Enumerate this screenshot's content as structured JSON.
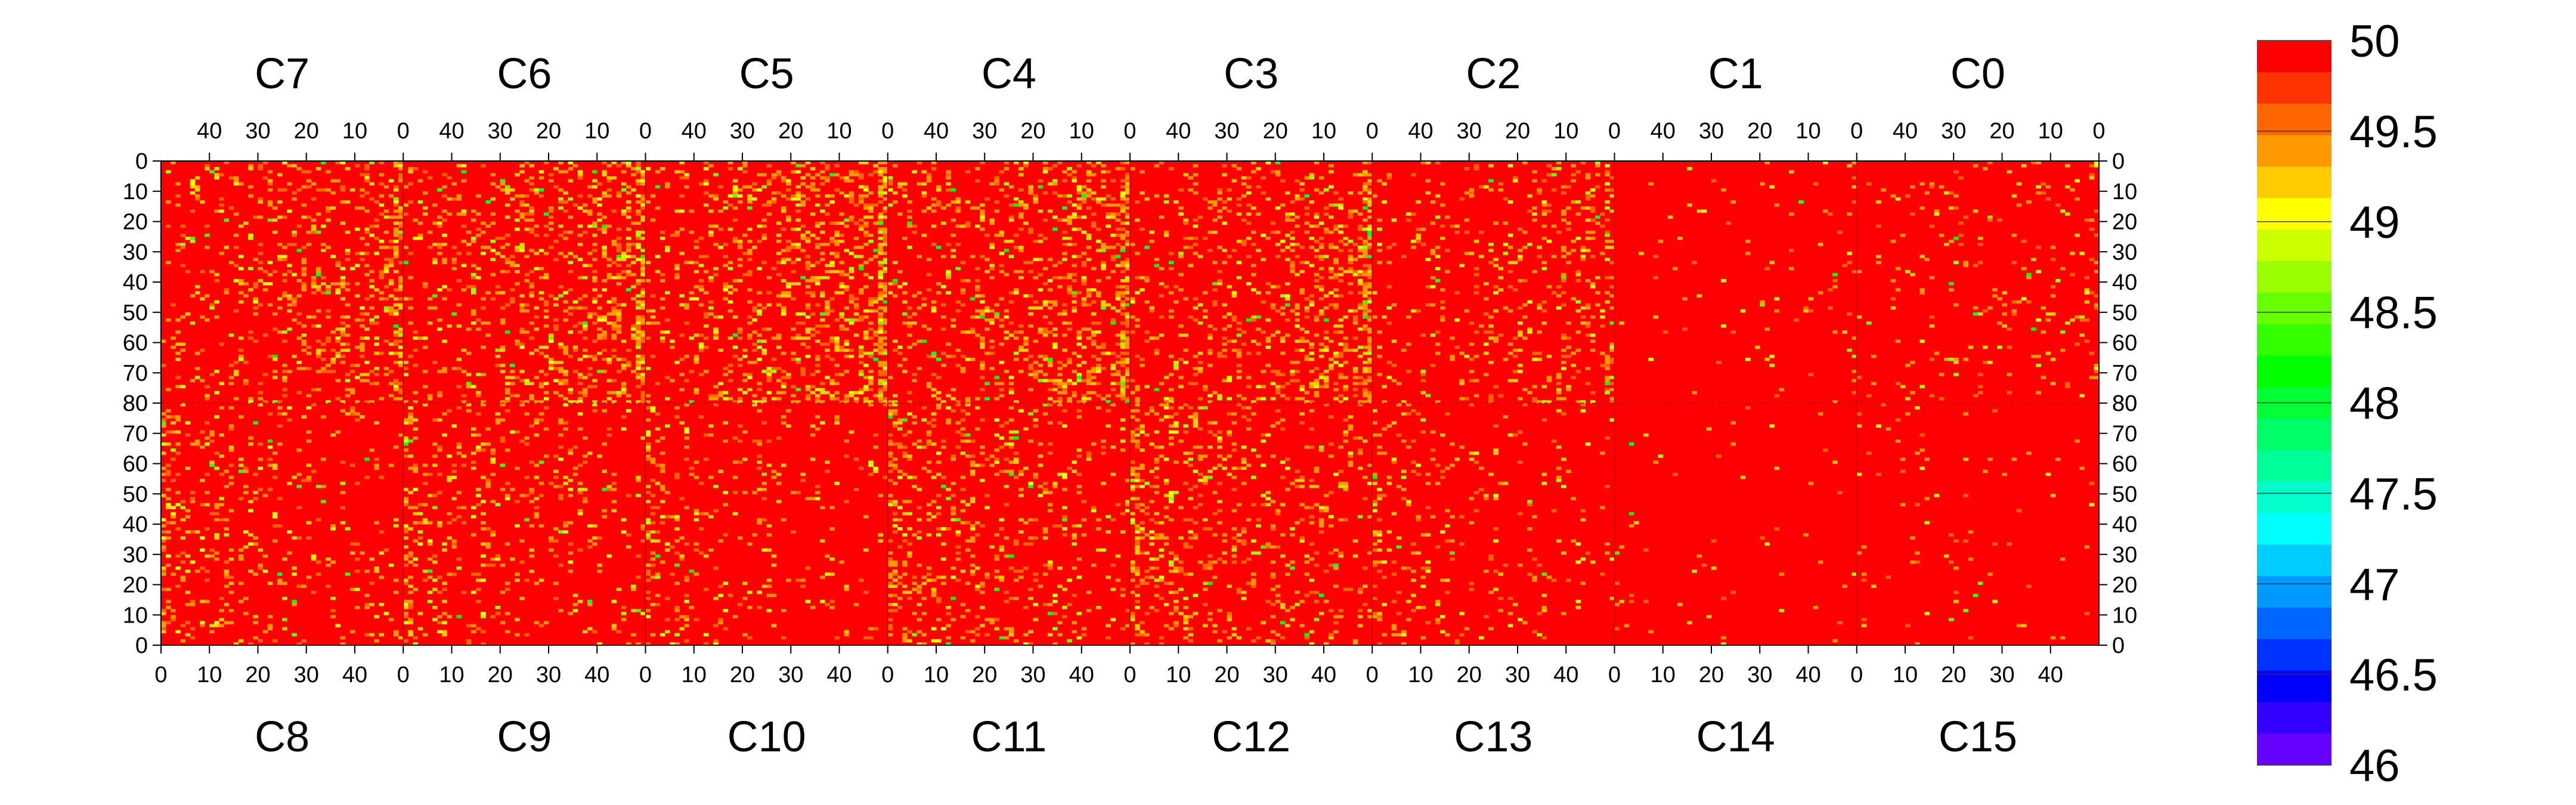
{
  "chart_data": {
    "type": "heatmap",
    "color_scale": {
      "min": 46,
      "max": 50,
      "step": 0.25,
      "tick_labels": [
        "50",
        "49.5",
        "49",
        "48.5",
        "48",
        "47.5",
        "47",
        "46.5",
        "46"
      ],
      "colors_top_to_bottom": [
        "#ff0000",
        "#ff3300",
        "#ff6600",
        "#ff9900",
        "#ffcc00",
        "#ffff00",
        "#ccff00",
        "#99ff00",
        "#66ff00",
        "#33ff00",
        "#00ff00",
        "#00ff33",
        "#00ff66",
        "#00ff99",
        "#00ffcc",
        "#00ffff",
        "#00ccff",
        "#0099ff",
        "#0066ff",
        "#0033ff",
        "#0000ff",
        "#3300ff",
        "#6600ff"
      ]
    },
    "top_sections": [
      "C7",
      "C6",
      "C5",
      "C4",
      "C3",
      "C2",
      "C1",
      "C0"
    ],
    "bottom_sections": [
      "C8",
      "C9",
      "C10",
      "C11",
      "C12",
      "C13",
      "C14",
      "C15"
    ],
    "top_x_tick_labels": [
      "40",
      "30",
      "20",
      "10",
      "0"
    ],
    "bottom_x_tick_labels": [
      "0",
      "10",
      "20",
      "30",
      "40"
    ],
    "upper_y_tick_labels": [
      "0",
      "10",
      "20",
      "30",
      "40",
      "50",
      "60",
      "70",
      "80"
    ],
    "lower_y_tick_labels": [
      "80",
      "70",
      "60",
      "50",
      "40",
      "30",
      "20",
      "10",
      "0"
    ],
    "section_x_range": [
      0,
      50
    ],
    "y_range_per_half": [
      0,
      80
    ],
    "dominant_value": 50,
    "low_value_density_top": [
      0.16,
      0.2,
      0.22,
      0.2,
      0.17,
      0.12,
      0.02,
      0.06
    ],
    "low_value_density_bottom": [
      0.1,
      0.1,
      0.08,
      0.14,
      0.14,
      0.07,
      0.015,
      0.02
    ]
  }
}
